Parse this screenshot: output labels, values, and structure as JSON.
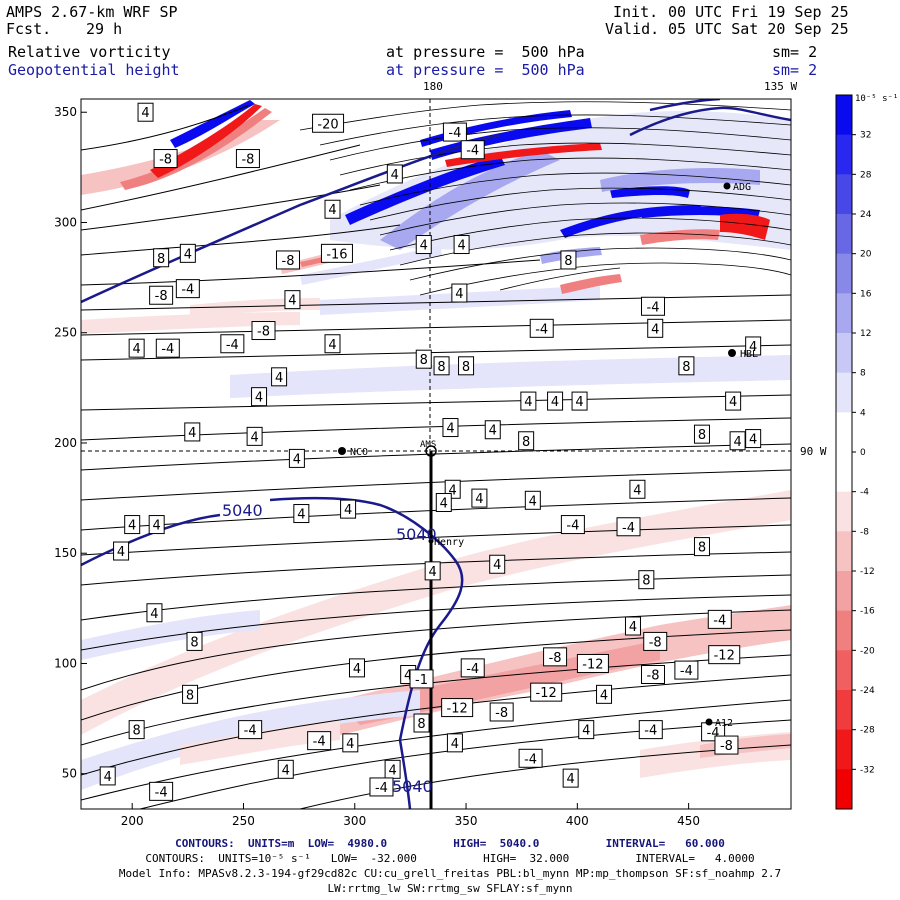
{
  "header": {
    "model_title": "AMPS 2.67-km WRF SP",
    "forecast_label": "Fcst.",
    "forecast_hours": "29 h",
    "init_label": "Init.",
    "init_time": "00 UTC Fri 19 Sep 25",
    "valid_label": "Valid.",
    "valid_time": "05 UTC Sat 20 Sep 25",
    "field1_name": "Relative vorticity",
    "field1_level": "at pressure =  500 hPa",
    "field1_smooth": "sm= 2",
    "field2_name": "Geopotential height",
    "field2_level": "at pressure =  500 hPa",
    "field2_smooth": "sm= 2"
  },
  "map": {
    "lon_180_label": "180",
    "lon_135w_label": "135 W",
    "lon_90w_label": "90 W",
    "station_labels": [
      "NCO",
      "Henry",
      "HBL",
      "ADG",
      "AMS",
      "A12"
    ],
    "x_axis_ticks": [
      200,
      250,
      300,
      350,
      400,
      450
    ],
    "y_axis_ticks": [
      50,
      100,
      150,
      200,
      250,
      300,
      350
    ],
    "x_range": [
      177,
      496
    ],
    "y_range": [
      34,
      356
    ],
    "height_contour_labels": [
      "5040",
      "5040",
      "5040"
    ],
    "vorticity_labels": [
      {
        "t": "4",
        "x": 206,
        "y": 350
      },
      {
        "t": "-8",
        "x": 215,
        "y": 329
      },
      {
        "t": "-8",
        "x": 252,
        "y": 329
      },
      {
        "t": "-20",
        "x": 288,
        "y": 345
      },
      {
        "t": "-4",
        "x": 345,
        "y": 341
      },
      {
        "t": "-4",
        "x": 353,
        "y": 333
      },
      {
        "t": "4",
        "x": 318,
        "y": 322
      },
      {
        "t": "4",
        "x": 290,
        "y": 306
      },
      {
        "t": "4",
        "x": 331,
        "y": 290
      },
      {
        "t": "4",
        "x": 348,
        "y": 290
      },
      {
        "t": "8",
        "x": 213,
        "y": 284
      },
      {
        "t": "4",
        "x": 225,
        "y": 286
      },
      {
        "t": "-8",
        "x": 213,
        "y": 267
      },
      {
        "t": "-4",
        "x": 225,
        "y": 270
      },
      {
        "t": "-8",
        "x": 270,
        "y": 283
      },
      {
        "t": "-16",
        "x": 292,
        "y": 286
      },
      {
        "t": "4",
        "x": 272,
        "y": 265
      },
      {
        "t": "4",
        "x": 347,
        "y": 268
      },
      {
        "t": "8",
        "x": 396,
        "y": 283
      },
      {
        "t": "-4",
        "x": 434,
        "y": 262
      },
      {
        "t": "-4",
        "x": 384,
        "y": 252
      },
      {
        "t": "-8",
        "x": 259,
        "y": 251
      },
      {
        "t": "4",
        "x": 202,
        "y": 243
      },
      {
        "t": "-4",
        "x": 216,
        "y": 243
      },
      {
        "t": "-4",
        "x": 245,
        "y": 245
      },
      {
        "t": "4",
        "x": 290,
        "y": 245
      },
      {
        "t": "8",
        "x": 331,
        "y": 238
      },
      {
        "t": "8",
        "x": 339,
        "y": 235
      },
      {
        "t": "8",
        "x": 350,
        "y": 235
      },
      {
        "t": "4",
        "x": 435,
        "y": 252
      },
      {
        "t": "8",
        "x": 449,
        "y": 235
      },
      {
        "t": "4",
        "x": 479,
        "y": 244
      },
      {
        "t": "4",
        "x": 266,
        "y": 230
      },
      {
        "t": "4",
        "x": 257,
        "y": 221
      },
      {
        "t": "4",
        "x": 401,
        "y": 219
      },
      {
        "t": "4",
        "x": 378,
        "y": 219
      },
      {
        "t": "4",
        "x": 390,
        "y": 219
      },
      {
        "t": "4",
        "x": 470,
        "y": 219
      },
      {
        "t": "4",
        "x": 227,
        "y": 205
      },
      {
        "t": "4",
        "x": 255,
        "y": 203
      },
      {
        "t": "4",
        "x": 343,
        "y": 207
      },
      {
        "t": "4",
        "x": 362,
        "y": 206
      },
      {
        "t": "8",
        "x": 377,
        "y": 201
      },
      {
        "t": "8",
        "x": 456,
        "y": 204
      },
      {
        "t": "4",
        "x": 472,
        "y": 201
      },
      {
        "t": "4",
        "x": 479,
        "y": 202
      },
      {
        "t": "4",
        "x": 274,
        "y": 193
      },
      {
        "t": "4",
        "x": 344,
        "y": 179
      },
      {
        "t": "4",
        "x": 356,
        "y": 175
      },
      {
        "t": "4",
        "x": 380,
        "y": 174
      },
      {
        "t": "4",
        "x": 427,
        "y": 179
      },
      {
        "t": "4",
        "x": 340,
        "y": 173
      },
      {
        "t": "4",
        "x": 276,
        "y": 168
      },
      {
        "t": "4",
        "x": 297,
        "y": 170
      },
      {
        "t": "4",
        "x": 200,
        "y": 163
      },
      {
        "t": "4",
        "x": 211,
        "y": 163
      },
      {
        "t": "-4",
        "x": 398,
        "y": 163
      },
      {
        "t": "-4",
        "x": 423,
        "y": 162
      },
      {
        "t": "8",
        "x": 456,
        "y": 153
      },
      {
        "t": "4",
        "x": 195,
        "y": 151
      },
      {
        "t": "4",
        "x": 335,
        "y": 142
      },
      {
        "t": "4",
        "x": 364,
        "y": 145
      },
      {
        "t": "8",
        "x": 431,
        "y": 138
      },
      {
        "t": "4",
        "x": 210,
        "y": 123
      },
      {
        "t": "4",
        "x": 425,
        "y": 117
      },
      {
        "t": "-4",
        "x": 464,
        "y": 120
      },
      {
        "t": "8",
        "x": 228,
        "y": 110
      },
      {
        "t": "-8",
        "x": 435,
        "y": 110
      },
      {
        "t": "-8",
        "x": 390,
        "y": 103
      },
      {
        "t": "-12",
        "x": 407,
        "y": 100
      },
      {
        "t": "-12",
        "x": 466,
        "y": 104
      },
      {
        "t": "4",
        "x": 301,
        "y": 98
      },
      {
        "t": "4",
        "x": 324,
        "y": 95
      },
      {
        "t": "-4",
        "x": 353,
        "y": 98
      },
      {
        "t": "-8",
        "x": 434,
        "y": 95
      },
      {
        "t": "-4",
        "x": 449,
        "y": 97
      },
      {
        "t": "-1",
        "x": 330,
        "y": 93
      },
      {
        "t": "8",
        "x": 226,
        "y": 86
      },
      {
        "t": "-12",
        "x": 386,
        "y": 87
      },
      {
        "t": "4",
        "x": 412,
        "y": 86
      },
      {
        "t": "-12",
        "x": 346,
        "y": 80
      },
      {
        "t": "-8",
        "x": 366,
        "y": 78
      },
      {
        "t": "8",
        "x": 330,
        "y": 73
      },
      {
        "t": "8",
        "x": 202,
        "y": 70
      },
      {
        "t": "-4",
        "x": 253,
        "y": 70
      },
      {
        "t": "4",
        "x": 404,
        "y": 70
      },
      {
        "t": "-4",
        "x": 433,
        "y": 70
      },
      {
        "t": "-4",
        "x": 461,
        "y": 69
      },
      {
        "t": "-4",
        "x": 284,
        "y": 65
      },
      {
        "t": "4",
        "x": 298,
        "y": 64
      },
      {
        "t": "4",
        "x": 345,
        "y": 64
      },
      {
        "t": "-8",
        "x": 467,
        "y": 63
      },
      {
        "t": "-4",
        "x": 379,
        "y": 57
      },
      {
        "t": "4",
        "x": 189,
        "y": 49
      },
      {
        "t": "4",
        "x": 269,
        "y": 52
      },
      {
        "t": "4",
        "x": 317,
        "y": 52
      },
      {
        "t": "4",
        "x": 397,
        "y": 48
      },
      {
        "t": "-4",
        "x": 213,
        "y": 42
      },
      {
        "t": "-4",
        "x": 312,
        "y": 44
      }
    ]
  },
  "colorbar": {
    "units": "10⁻⁵ s⁻¹",
    "tick_labels": [
      "32",
      "28",
      "24",
      "20",
      "16",
      "12",
      "8",
      "4",
      "0",
      "-4",
      "-8",
      "-12",
      "-16",
      "-20",
      "-24",
      "-28",
      "-32"
    ],
    "colors": [
      "#0a0af0",
      "#2828f0",
      "#4848e8",
      "#6868e6",
      "#8888e8",
      "#a8a8f0",
      "#c8c8f6",
      "#e4e4fa",
      "#ffffff",
      "#ffffff",
      "#fbe2e2",
      "#f6c2c2",
      "#f2a2a2",
      "#f08080",
      "#f06060",
      "#f03c3c",
      "#f01818",
      "#f00000"
    ]
  },
  "footer": {
    "line1": "CONTOURS:  UNITS=m  LOW=  4980.0          HIGH=  5040.0          INTERVAL=   60.000",
    "line2": "CONTOURS:  UNITS=10⁻⁵ s⁻¹   LOW=  -32.000          HIGH=  32.000          INTERVAL=   4.0000",
    "line3": "Model Info: MPASv8.2.3-194-gf29cd82c CU:cu_grell_freitas PBL:bl_mynn MP:mp_thompson SF:sf_noahmp 2.7",
    "line4": "LW:rrtmg_lw SW:rrtmg_sw SFLAY:sf_mynn"
  },
  "colors": {
    "height_contour": "#1a1a8c",
    "header_blue": "#1a1aa8"
  }
}
